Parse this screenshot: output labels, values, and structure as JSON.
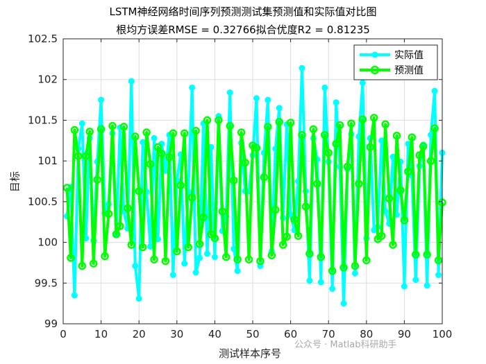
{
  "title_line1": "LSTM神经网络时间序列预测测试集预测值和实际值对比图",
  "title_line2": "根均方误差RMSE = 0.32766拟合优度R2 = 0.81235",
  "watermark": "公众号 · Matlab科研助手",
  "chart_data": {
    "type": "line",
    "title": "LSTM神经网络时间序列预测测试集预测值和实际值对比图",
    "subtitle": "根均方误差RMSE = 0.32766拟合优度R2 = 0.81235",
    "xlabel": "测试样本序号",
    "ylabel": "目标",
    "xlim": [
      0,
      100
    ],
    "ylim": [
      99,
      102.5
    ],
    "xticks": [
      0,
      10,
      20,
      30,
      40,
      50,
      60,
      70,
      80,
      90,
      100
    ],
    "yticks": [
      99,
      99.5,
      100,
      100.5,
      101,
      101.5,
      102,
      102.5
    ],
    "grid": true,
    "legend_position": "top-right",
    "x": [
      1,
      2,
      3,
      4,
      5,
      6,
      7,
      8,
      9,
      10,
      11,
      12,
      13,
      14,
      15,
      16,
      17,
      18,
      19,
      20,
      21,
      22,
      23,
      24,
      25,
      26,
      27,
      28,
      29,
      30,
      31,
      32,
      33,
      34,
      35,
      36,
      37,
      38,
      39,
      40,
      41,
      42,
      43,
      44,
      45,
      46,
      47,
      48,
      49,
      50,
      51,
      52,
      53,
      54,
      55,
      56,
      57,
      58,
      59,
      60,
      61,
      62,
      63,
      64,
      65,
      66,
      67,
      68,
      69,
      70,
      71,
      72,
      73,
      74,
      75,
      76,
      77,
      78,
      79,
      80,
      81,
      82,
      83,
      84,
      85,
      86,
      87,
      88,
      89,
      90,
      91,
      92,
      93,
      94,
      95,
      96,
      97,
      98,
      99,
      100
    ],
    "series": [
      {
        "name": "实际值",
        "color": "#00ffff",
        "values": [
          100.32,
          100.68,
          99.35,
          101.15,
          101.46,
          100.05,
          101.28,
          100.02,
          100.99,
          101.75,
          100.36,
          100.47,
          101.34,
          100.09,
          101.41,
          100.38,
          100.17,
          101.98,
          99.71,
          99.31,
          101.23,
          100.62,
          99.95,
          101.28,
          100.04,
          101.21,
          100.88,
          101.32,
          99.6,
          100.76,
          101.08,
          99.74,
          100.62,
          101.9,
          99.63,
          99.81,
          101.46,
          99.86,
          101.17,
          99.82,
          101.55,
          100.14,
          100.32,
          101.84,
          99.92,
          99.65,
          101.22,
          100.63,
          100.63,
          101.07,
          101.77,
          99.71,
          101.1,
          101.75,
          99.89,
          101.15,
          101.65,
          100.3,
          101.45,
          100.34,
          100.15,
          100.75,
          102.14,
          100.63,
          99.53,
          101.28,
          101.02,
          99.51,
          101.9,
          100.99,
          99.43,
          101.72,
          100.93,
          99.25,
          100.9,
          101.33,
          99.62,
          101.3,
          101.96,
          100.05,
          101.28,
          100.15,
          100.19,
          101.25,
          100.38,
          100.23,
          101.05,
          100.34,
          100.99,
          99.46,
          101.21,
          100.82,
          99.54,
          100.94,
          101.2,
          99.47,
          101.32,
          101.86,
          99.6,
          101.1
        ]
      },
      {
        "name": "预测值",
        "color": "#00ff00",
        "values": [
          100.67,
          99.81,
          101.38,
          101.06,
          99.71,
          101.06,
          101.36,
          99.74,
          100.77,
          101.39,
          99.83,
          100.35,
          101.43,
          100.1,
          100.2,
          101.42,
          100.42,
          99.97,
          101.3,
          100.63,
          99.94,
          101.35,
          100.96,
          99.79,
          101.17,
          101.09,
          99.77,
          101.05,
          101.34,
          99.89,
          100.7,
          101.34,
          99.94,
          100.55,
          101.37,
          99.98,
          100.31,
          101.5,
          100.1,
          100.05,
          101.5,
          100.38,
          99.82,
          101.43,
          100.76,
          99.79,
          101.35,
          100.98,
          99.79,
          101.19,
          101.16,
          99.77,
          100.8,
          101.42,
          99.84,
          100.4,
          101.48,
          99.97,
          100.07,
          101.47,
          100.28,
          100.08,
          101.32,
          100.44,
          99.86,
          101.39,
          100.72,
          99.82,
          101.32,
          101.1,
          99.65,
          101.21,
          101.44,
          99.69,
          100.93,
          101.46,
          99.71,
          100.72,
          101.51,
          99.78,
          101.17,
          101.53,
          100.04,
          100.08,
          101.45,
          100.54,
          99.97,
          101.31,
          100.64,
          100.27,
          100.87,
          101.29,
          99.85,
          101.07,
          101.18,
          99.85,
          101.0,
          101.4,
          99.78,
          100.49
        ]
      }
    ]
  }
}
